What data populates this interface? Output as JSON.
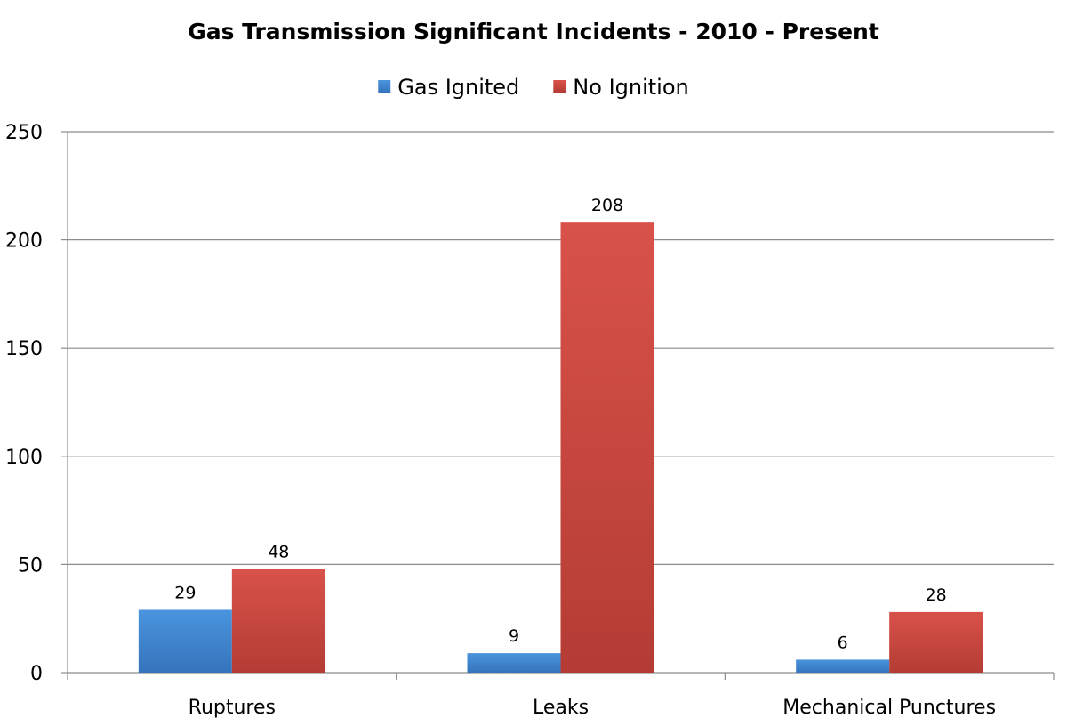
{
  "chart_data": {
    "type": "bar",
    "title": "Gas Transmission Significant Incidents - 2010 - Present",
    "xlabel": "",
    "ylabel": "",
    "categories": [
      "Ruptures",
      "Leaks",
      "Mechanical Punctures"
    ],
    "series": [
      {
        "name": "Gas Ignited",
        "values": [
          29,
          9,
          6
        ],
        "color": "#3f80c6"
      },
      {
        "name": "No Ignition",
        "values": [
          48,
          208,
          28
        ],
        "color": "#c8413a"
      }
    ],
    "ylim": [
      0,
      250
    ],
    "yticks": [
      0,
      50,
      100,
      150,
      200,
      250
    ],
    "grid": true,
    "legend_position": "top",
    "data_labels": true
  }
}
